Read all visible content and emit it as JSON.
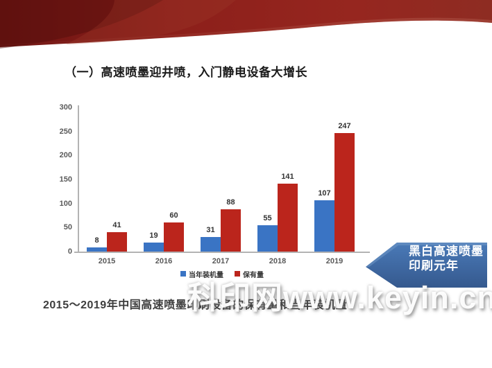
{
  "slide": {
    "title": "（一）高速喷墨迎井喷，入门静电设备大增长",
    "caption": "2015～2019年中国高速喷墨印刷设备的保有量和当年装机量",
    "watermark": "科印网www.keyin.cn",
    "banner_colors": {
      "dark": "#5c100e",
      "main": "#8e1f1a",
      "edge": "#a85248"
    },
    "callout": {
      "line1": "黑白高速喷墨",
      "line2": "印刷元年",
      "fill_top": "#4a7ab8",
      "fill_bottom": "#35598e"
    }
  },
  "chart_data": {
    "type": "bar",
    "categories": [
      "2015",
      "2016",
      "2017",
      "2018",
      "2019"
    ],
    "series": [
      {
        "name": "当年装机量",
        "color": "#3a74c4",
        "values": [
          8,
          19,
          31,
          55,
          107
        ]
      },
      {
        "name": "保有量",
        "color": "#bb251c",
        "values": [
          41,
          60,
          88,
          141,
          247
        ]
      }
    ],
    "title": "",
    "xlabel": "",
    "ylabel": "",
    "ylim": [
      0,
      300
    ],
    "yticks": [
      0,
      50,
      100,
      150,
      200,
      250,
      300
    ],
    "grid": false,
    "legend_position": "bottom"
  }
}
